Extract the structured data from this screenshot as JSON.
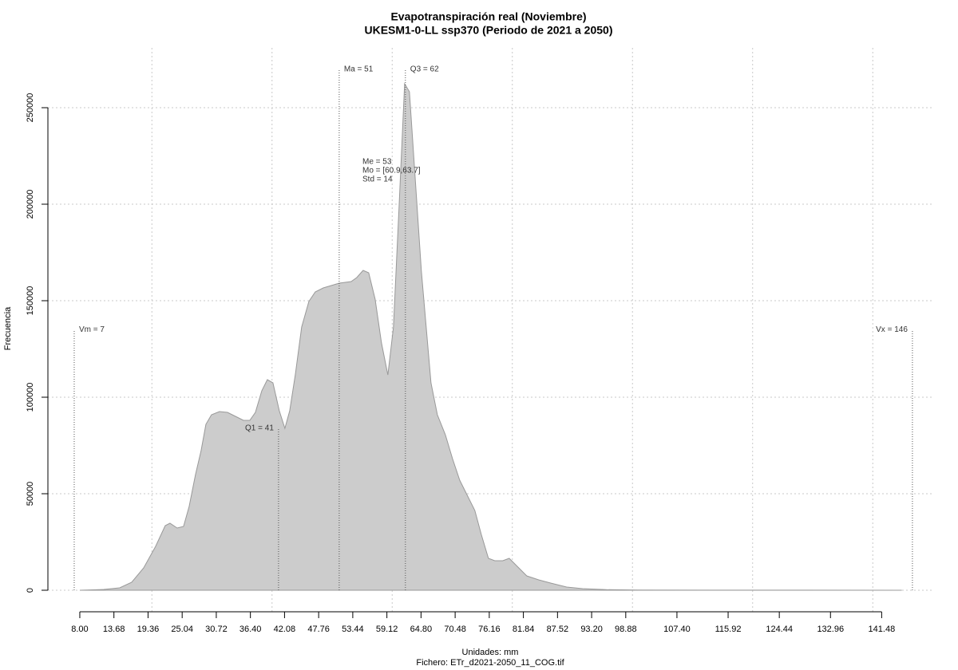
{
  "chart_data": {
    "type": "area",
    "title": "Evapotranspiración real (Noviembre)",
    "subtitle": "UKESM1-0-LL ssp370 (Periodo de 2021 a 2050)",
    "x_label": "Unidades: mm",
    "caption": "Fichero: ETr_d2021-2050_11_COG.tif",
    "y_label": "Frecuencia",
    "color": "#cccccc",
    "line_color": "#999999",
    "grid": true,
    "xgrid": [
      20,
      40,
      60,
      80,
      100,
      120,
      140
    ],
    "xlim": [
      2.69,
      150.2
    ],
    "ylim": [
      -11570,
      281000
    ],
    "xticks": [
      {
        "value": 8,
        "label": "8.00"
      },
      13.68,
      19.36,
      25.04,
      {
        "value": 30.72,
        "label": "30.72"
      },
      {
        "value": 36.4,
        "label": "36.40"
      },
      42.08,
      47.76,
      53.44,
      59.12,
      {
        "value": 64.8,
        "label": "64.80"
      },
      70.48,
      76.16,
      81.84,
      87.52,
      {
        "value": 93.2,
        "label": "93.20"
      },
      98.88,
      {
        "value": 107.4,
        "label": "107.40"
      },
      115.92,
      124.44,
      132.96,
      141.48
    ],
    "yticks": [
      0,
      50000,
      100000,
      150000,
      200000,
      250000
    ],
    "x": [
      8.0,
      11.99,
      14.64,
      16.64,
      18.63,
      20.62,
      22.22,
      23.01,
      24.21,
      25.27,
      26.2,
      27.26,
      28.19,
      28.99,
      29.92,
      31.25,
      32.58,
      33.91,
      35.24,
      36.3,
      37.23,
      38.29,
      39.22,
      40.15,
      41.21,
      42.14,
      42.94,
      43.87,
      44.93,
      46.13,
      47.19,
      48.52,
      49.85,
      51.18,
      53.17,
      54.1,
      55.16,
      56.09,
      57.16,
      58.22,
      59.28,
      60.21,
      61.14,
      62.07,
      62.87,
      63.8,
      64.86,
      66.46,
      67.52,
      68.85,
      70.04,
      71.24,
      72.43,
      73.76,
      74.83,
      76.02,
      77.08,
      78.41,
      79.48,
      80.41,
      82.4,
      84.39,
      86.38,
      89.04,
      91.7,
      95.68,
      100.99,
      144.84
    ],
    "values": [
      0,
      413,
      1240,
      4132,
      11570,
      22727,
      33471,
      34711,
      32231,
      33058,
      43388,
      59917,
      72314,
      85950,
      90909,
      92562,
      92149,
      90083,
      88017,
      88017,
      92149,
      103306,
      109091,
      107438,
      92975,
      83884,
      92975,
      111570,
      136364,
      149587,
      154545,
      156612,
      157851,
      159091,
      159917,
      161983,
      165702,
      164463,
      150826,
      128099,
      111570,
      136364,
      198347,
      262397,
      258264,
      214876,
      165289,
      107438,
      90909,
      80579,
      68182,
      57025,
      49587,
      41322,
      28926,
      16529,
      15289,
      15289,
      16529,
      13636,
      7438,
      5372,
      3719,
      1653,
      826,
      300,
      100,
      0
    ],
    "markers": [
      {
        "label": "Vm = 7",
        "x": 7.07,
        "y": 135000
      },
      {
        "label": "Q1 = 41",
        "x": 41.08,
        "y": 84000
      },
      {
        "label": "Ma = 51",
        "x": 51.18,
        "y": 270000
      },
      {
        "label": "Q3 = 62",
        "x": 62.2,
        "y": 270000
      },
      {
        "label": "Vx = 146",
        "x": 146.6,
        "y": 135000
      }
    ],
    "stats": [
      "Me = 53",
      "Mo = [60.9,63.7]",
      "Std = 14"
    ]
  }
}
